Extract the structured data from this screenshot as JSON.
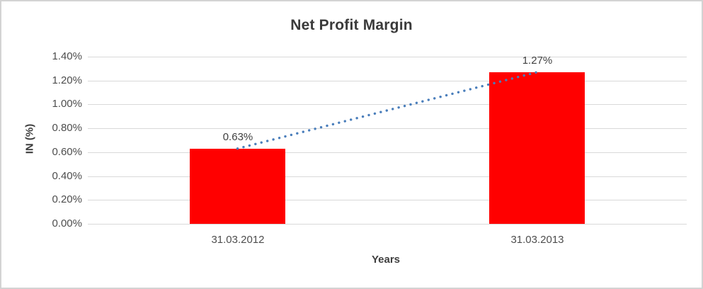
{
  "chart_data": {
    "type": "bar",
    "title": "Net Profit Margin",
    "xlabel": "Years",
    "ylabel": "IN (%)",
    "categories": [
      "31.03.2012",
      "31.03.2013"
    ],
    "values": [
      0.63,
      1.27
    ],
    "data_labels": [
      "0.63%",
      "1.27%"
    ],
    "ylim": [
      0,
      1.4
    ],
    "ytick_step": 0.2,
    "ytick_labels": [
      "0.00%",
      "0.20%",
      "0.40%",
      "0.60%",
      "0.80%",
      "1.00%",
      "1.20%",
      "1.40%"
    ],
    "grid": true,
    "legend": false,
    "bar_color": "#FF0000",
    "gridline_color": "#D9D9D9",
    "text_color": "#4D4D4D",
    "title_color": "#3A3A3A",
    "trendline": {
      "type": "linear",
      "style": "dotted",
      "color": "#4A7EBB",
      "from_value": 0.63,
      "to_value": 1.27
    }
  }
}
